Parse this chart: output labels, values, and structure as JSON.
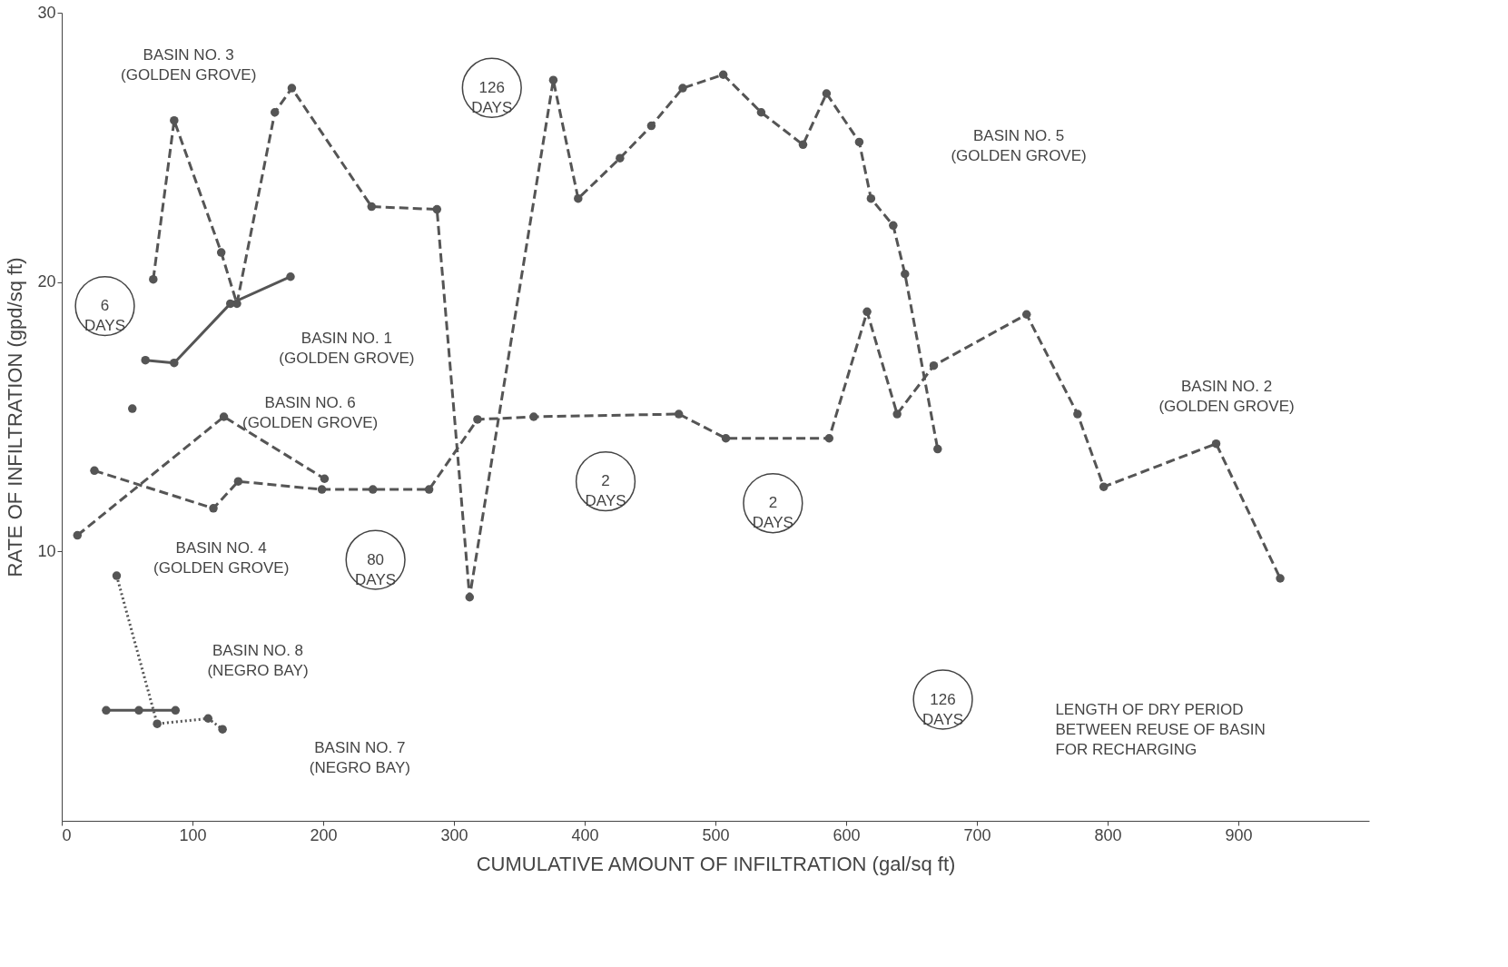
{
  "chart_data": {
    "type": "line",
    "xlabel": "CUMULATIVE AMOUNT OF INFILTRATION (gal/sq ft)",
    "ylabel": "RATE OF INFILTRATION (gpd/sq ft)",
    "xlim": [
      0,
      1000
    ],
    "xticks": [
      0,
      100,
      200,
      300,
      400,
      500,
      600,
      700,
      800,
      900
    ],
    "ylim": [
      0,
      30
    ],
    "yticks": [
      10,
      20,
      30
    ],
    "grid": false,
    "marker": "circle",
    "series": [
      {
        "color": "#555555",
        "line_style": "dashed",
        "x": [
          70,
          86,
          122,
          134,
          163,
          176,
          237,
          287,
          312,
          376,
          395,
          427,
          451,
          475,
          506,
          535,
          567,
          585,
          610,
          619,
          636,
          645,
          670
        ],
        "values": [
          20.1,
          26.0,
          21.1,
          19.2,
          26.3,
          27.2,
          22.8,
          22.7,
          8.3,
          27.5,
          23.1,
          24.6,
          25.8,
          27.2,
          27.7,
          26.3,
          25.1,
          27.0,
          25.2,
          23.1,
          22.1,
          20.3,
          13.8
        ]
      },
      {
        "color": "#555555",
        "line_style": "solid",
        "x": [
          64,
          86,
          129,
          175
        ],
        "values": [
          17.1,
          17.0,
          19.2,
          20.2
        ]
      },
      {
        "color": "#555555",
        "line_style": "dashed",
        "x": [
          12,
          124,
          201
        ],
        "values": [
          10.6,
          15.0,
          12.7
        ]
      },
      {
        "color": "#555555",
        "line_style": "dashed",
        "x": [
          54
        ],
        "values": [
          15.3
        ]
      },
      {
        "color": "#555555",
        "line_style": "dashed",
        "x": [
          25,
          116,
          135,
          199,
          238,
          281,
          318,
          361,
          472,
          508,
          587,
          616,
          639,
          667,
          738,
          777,
          797,
          883,
          932
        ],
        "values": [
          13.0,
          11.6,
          12.6,
          12.3,
          12.3,
          12.3,
          14.9,
          15.0,
          15.1,
          14.2,
          14.2,
          18.9,
          15.1,
          16.9,
          18.8,
          15.1,
          12.4,
          14.0,
          9.0
        ]
      },
      {
        "color": "#555555",
        "line_style": "solid",
        "x": [
          34,
          59,
          87
        ],
        "values": [
          4.1,
          4.1,
          4.1
        ]
      },
      {
        "color": "#555555",
        "line_style": "dotted",
        "x": [
          42,
          73,
          112,
          123
        ],
        "values": [
          9.1,
          3.6,
          3.8,
          3.4
        ]
      }
    ],
    "annotations": [
      "BASIN NO. 3\n(GOLDEN GROVE)",
      "BASIN NO. 5\n(GOLDEN GROVE)",
      "BASIN NO. 1\n(GOLDEN GROVE)",
      "BASIN NO. 6\n(GOLDEN GROVE)",
      "BASIN NO. 2\n(GOLDEN GROVE)",
      "BASIN NO. 4\n(GOLDEN GROVE)",
      "BASIN NO. 8\n(NEGRO BAY)",
      "BASIN NO. 7\n(NEGRO BAY)",
      "126\nDAYS",
      "6\nDAYS",
      "80\nDAYS",
      "2\nDAYS",
      "2\nDAYS",
      "126\nDAYS",
      "LENGTH OF DRY PERIOD\nBETWEEN REUSE OF BASIN\nFOR RECHARGING"
    ]
  }
}
